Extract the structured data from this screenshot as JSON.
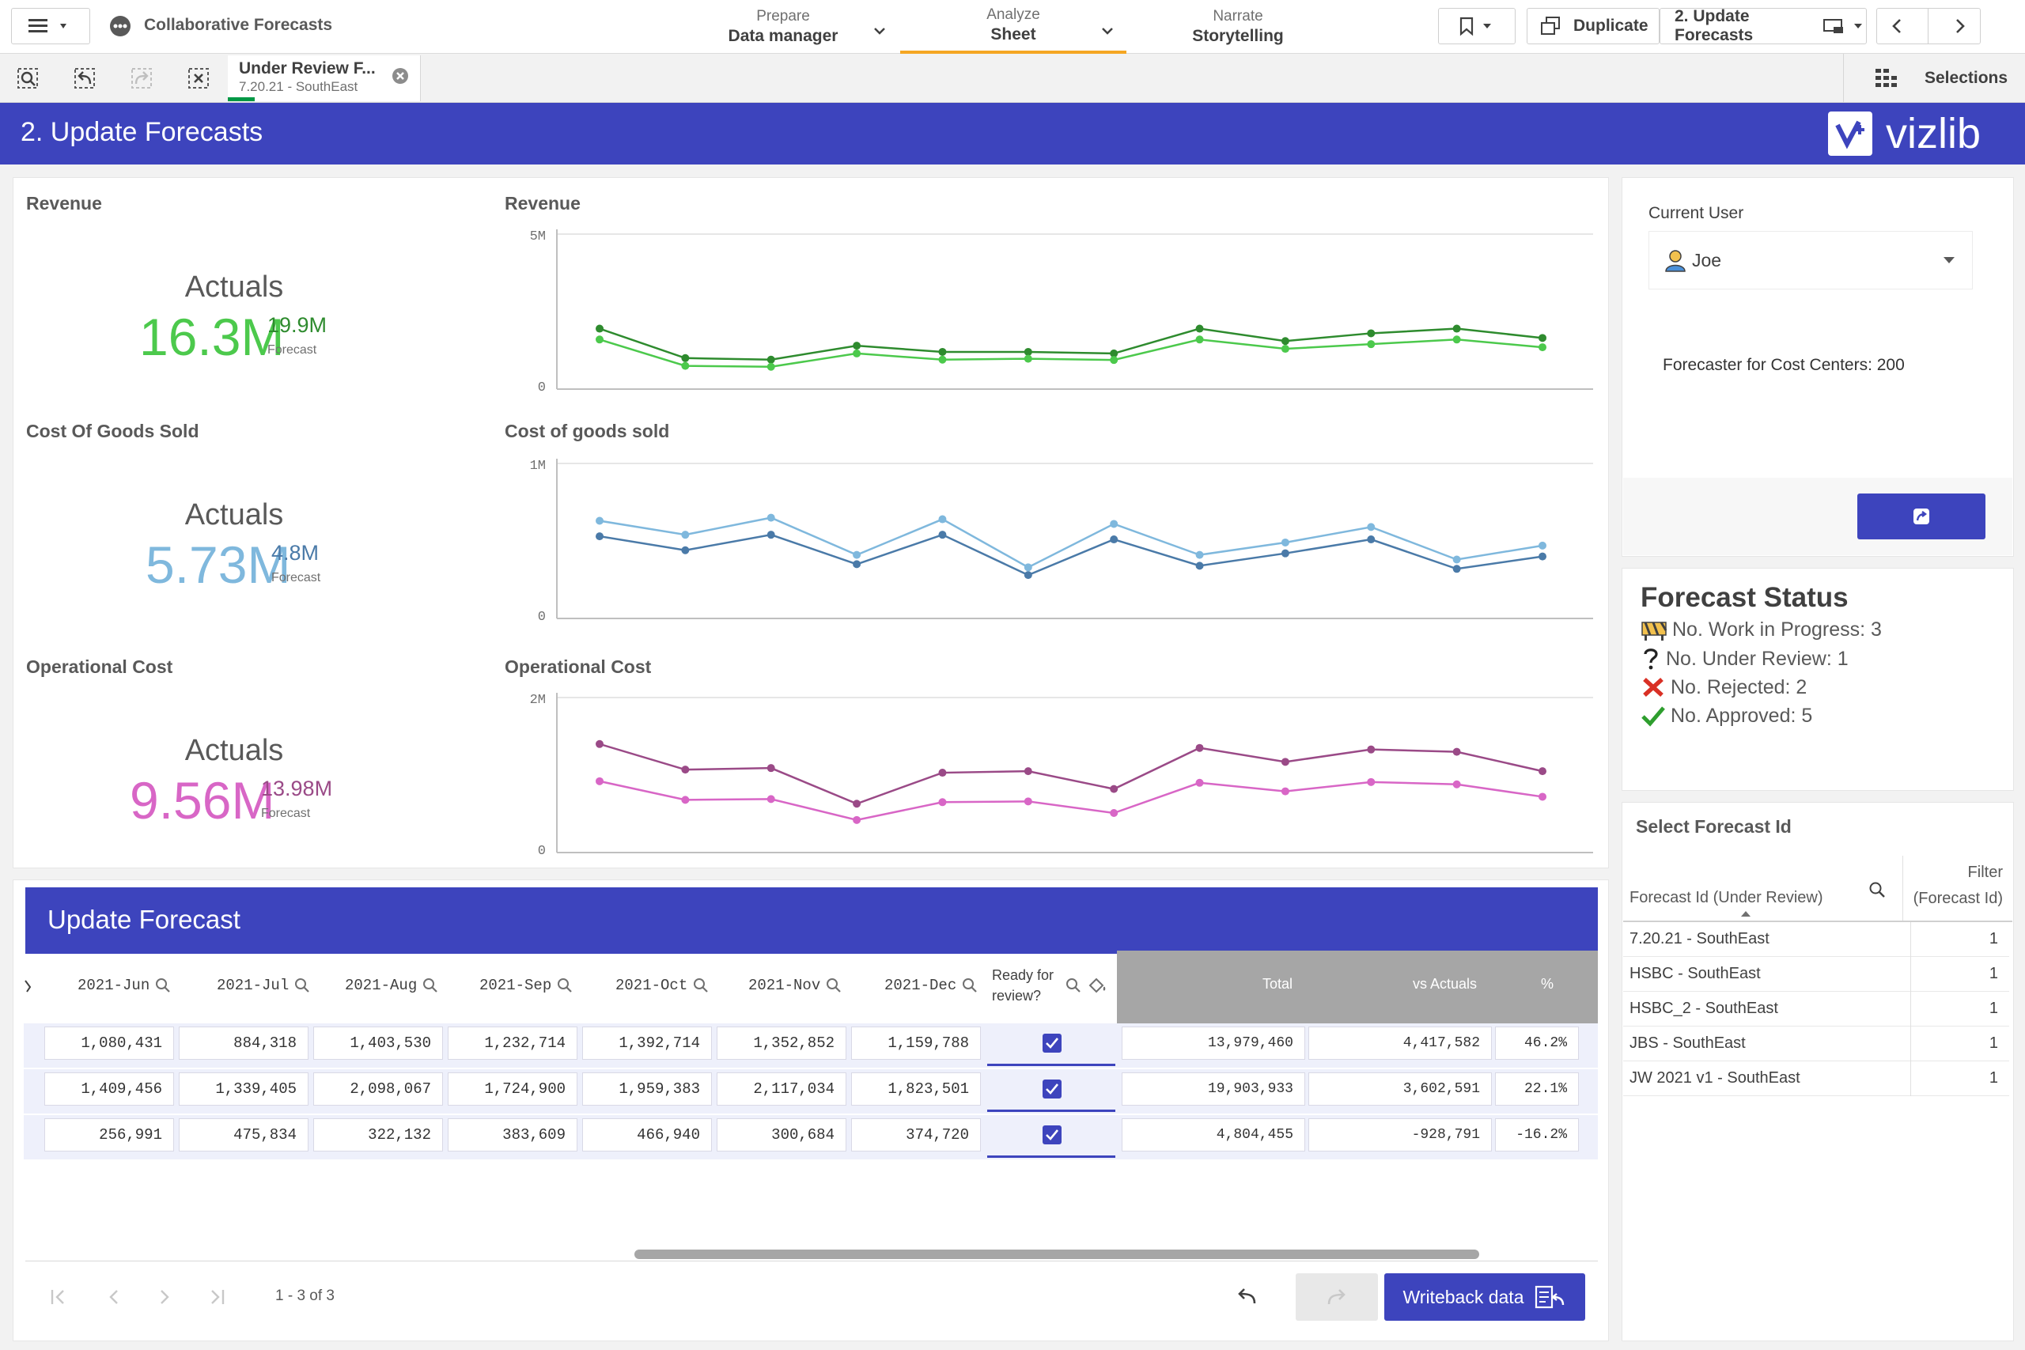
{
  "app": {
    "title": "Collaborative Forecasts"
  },
  "nav": {
    "prepare": {
      "small": "Prepare",
      "label": "Data manager"
    },
    "analyze": {
      "small": "Analyze",
      "label": "Sheet"
    },
    "narrate": {
      "small": "Narrate",
      "label": "Storytelling"
    }
  },
  "toolbar": {
    "duplicate": "Duplicate",
    "sheet_name": "2. Update Forecasts"
  },
  "selection": {
    "chip_title": "Under Review F...",
    "chip_value": "7.20.21 - SouthEast",
    "selections_label": "Selections"
  },
  "sheet": {
    "title": "2. Update Forecasts",
    "logo_text": "vizlib"
  },
  "kpis": [
    {
      "title": "Revenue",
      "label": "Actuals",
      "value": "16.3M",
      "forecast": "19.9M",
      "forecast_label": "Forecast"
    },
    {
      "title": "Cost Of Goods Sold",
      "label": "Actuals",
      "value": "5.73M",
      "forecast": "4.8M",
      "forecast_label": "Forecast"
    },
    {
      "title": "Operational Cost",
      "label": "Actuals",
      "value": "9.56M",
      "forecast": "13.98M",
      "forecast_label": "Forecast"
    }
  ],
  "colors": {
    "accent": "#3d44bd",
    "revenue_dark": "#2e8b2e",
    "revenue_light": "#4cc94c",
    "cogs_dark": "#4a7aa8",
    "cogs_light": "#7fb8dd",
    "opcost_dark": "#9a4a87",
    "opcost_light": "#d866c6"
  },
  "chart_data": [
    {
      "type": "line",
      "title": "Revenue",
      "ylim": [
        0,
        5000000
      ],
      "ytick_labels": [
        "5M",
        "0"
      ],
      "series": [
        {
          "values": [
            1950000,
            1000000,
            950000,
            1400000,
            1200000,
            1200000,
            1150000,
            1950000,
            1550000,
            1800000,
            1950000,
            1650000
          ]
        },
        {
          "values": [
            1600000,
            750000,
            720000,
            1150000,
            950000,
            980000,
            940000,
            1600000,
            1300000,
            1450000,
            1600000,
            1350000
          ]
        }
      ]
    },
    {
      "type": "line",
      "title": "Cost of goods sold",
      "ylim": [
        0,
        1000000
      ],
      "ytick_labels": [
        "1M",
        "0"
      ],
      "series": [
        {
          "values": [
            530000,
            440000,
            540000,
            350000,
            540000,
            280000,
            510000,
            340000,
            420000,
            510000,
            320000,
            400000
          ]
        },
        {
          "values": [
            630000,
            540000,
            650000,
            410000,
            640000,
            330000,
            610000,
            410000,
            490000,
            590000,
            380000,
            470000
          ]
        }
      ]
    },
    {
      "type": "line",
      "title": "Operational Cost",
      "ylim": [
        0,
        2000000
      ],
      "ytick_labels": [
        "2M",
        "0"
      ],
      "series": [
        {
          "values": [
            1400000,
            1070000,
            1090000,
            630000,
            1030000,
            1050000,
            820000,
            1350000,
            1170000,
            1330000,
            1300000,
            1050000
          ]
        },
        {
          "values": [
            920000,
            680000,
            690000,
            420000,
            650000,
            660000,
            510000,
            900000,
            790000,
            910000,
            880000,
            720000
          ]
        }
      ]
    }
  ],
  "user_panel": {
    "label": "Current User",
    "user": "Joe",
    "forecaster_text": "Forecaster for Cost Centers: 200"
  },
  "status": {
    "title": "Forecast Status",
    "items": [
      {
        "icon": "construction-icon",
        "text": "No. Work in Progress: 3"
      },
      {
        "icon": "question-icon",
        "text": "No. Under Review: 1"
      },
      {
        "icon": "x-icon",
        "text": "No. Rejected: 2"
      },
      {
        "icon": "check-icon",
        "text": "No. Approved: 5"
      }
    ]
  },
  "select_forecast": {
    "title": "Select Forecast Id",
    "col1": "Forecast Id (Under Review)",
    "col2_line1": "Filter",
    "col2_line2": "(Forecast Id)",
    "rows": [
      {
        "id": "7.20.21 - SouthEast",
        "count": "1"
      },
      {
        "id": "HSBC - SouthEast",
        "count": "1"
      },
      {
        "id": "HSBC_2 - SouthEast",
        "count": "1"
      },
      {
        "id": "JBS - SouthEast",
        "count": "1"
      },
      {
        "id": "JW 2021 v1 - SouthEast",
        "count": "1"
      }
    ]
  },
  "update_table": {
    "title": "Update Forecast",
    "months": [
      "2021-Jun",
      "2021-Jul",
      "2021-Aug",
      "2021-Sep",
      "2021-Oct",
      "2021-Nov",
      "2021-Dec"
    ],
    "ready_label_1": "Ready for",
    "ready_label_2": "review?",
    "total_label": "Total",
    "vs_label": "vs Actuals",
    "pct_label": "%",
    "rows": [
      {
        "cells": [
          "1,080,431",
          "884,318",
          "1,403,530",
          "1,232,714",
          "1,392,714",
          "1,352,852",
          "1,159,788"
        ],
        "total": "13,979,460",
        "vs": "4,417,582",
        "pct": "46.2%"
      },
      {
        "cells": [
          "1,409,456",
          "1,339,405",
          "2,098,067",
          "1,724,900",
          "1,959,383",
          "2,117,034",
          "1,823,501"
        ],
        "total": "19,903,933",
        "vs": "3,602,591",
        "pct": "22.1%"
      },
      {
        "cells": [
          "256,991",
          "475,834",
          "322,132",
          "383,609",
          "466,940",
          "300,684",
          "374,720"
        ],
        "total": "4,804,455",
        "vs": "-928,791",
        "pct": "-16.2%"
      }
    ],
    "pager": "1 - 3 of 3",
    "writeback": "Writeback data"
  }
}
